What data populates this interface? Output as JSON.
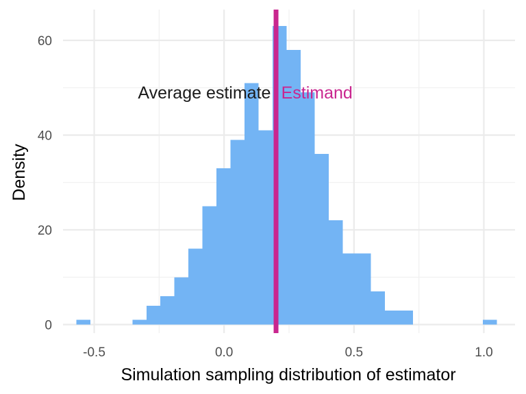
{
  "chart_data": {
    "type": "bar",
    "subtype": "histogram",
    "xlabel": "Simulation sampling distribution of estimator",
    "ylabel": "Density",
    "xlim": [
      -0.62,
      1.12
    ],
    "ylim": [
      -1.8,
      66.5
    ],
    "x_ticks": [
      -0.5,
      0.0,
      0.5,
      1.0
    ],
    "x_tick_labels": [
      "-0.5",
      "0.0",
      "0.5",
      "1.0"
    ],
    "y_ticks": [
      0,
      20,
      40,
      60
    ],
    "y_tick_labels": [
      "0",
      "20",
      "40",
      "60"
    ],
    "grid": true,
    "bar_color": "#73b4f4",
    "bins": [
      {
        "x0": -0.568,
        "x1": -0.514,
        "density": 1
      },
      {
        "x0": -0.353,
        "x1": -0.299,
        "density": 1
      },
      {
        "x0": -0.299,
        "x1": -0.245,
        "density": 4
      },
      {
        "x0": -0.245,
        "x1": -0.191,
        "density": 6
      },
      {
        "x0": -0.191,
        "x1": -0.137,
        "density": 10
      },
      {
        "x0": -0.137,
        "x1": -0.083,
        "density": 16
      },
      {
        "x0": -0.083,
        "x1": -0.029,
        "density": 25
      },
      {
        "x0": -0.029,
        "x1": 0.025,
        "density": 33
      },
      {
        "x0": 0.025,
        "x1": 0.079,
        "density": 39
      },
      {
        "x0": 0.079,
        "x1": 0.133,
        "density": 51
      },
      {
        "x0": 0.133,
        "x1": 0.187,
        "density": 41
      },
      {
        "x0": 0.187,
        "x1": 0.241,
        "density": 63
      },
      {
        "x0": 0.241,
        "x1": 0.295,
        "density": 58
      },
      {
        "x0": 0.295,
        "x1": 0.349,
        "density": 49
      },
      {
        "x0": 0.349,
        "x1": 0.403,
        "density": 36
      },
      {
        "x0": 0.403,
        "x1": 0.457,
        "density": 22
      },
      {
        "x0": 0.457,
        "x1": 0.511,
        "density": 15
      },
      {
        "x0": 0.511,
        "x1": 0.565,
        "density": 15
      },
      {
        "x0": 0.565,
        "x1": 0.619,
        "density": 7
      },
      {
        "x0": 0.619,
        "x1": 0.673,
        "density": 3
      },
      {
        "x0": 0.673,
        "x1": 0.727,
        "density": 3
      },
      {
        "x0": 0.996,
        "x1": 1.05,
        "density": 1
      }
    ],
    "vertical_lines": [
      {
        "x": 0.2,
        "color": "#c9268f",
        "note": "average estimate and estimand coincide"
      }
    ],
    "annotations": [
      {
        "text": "Average estimate",
        "x": 0.18,
        "y": 49,
        "align": "right",
        "color": "#1a1a1a"
      },
      {
        "text": "Estimand",
        "x": 0.22,
        "y": 49,
        "align": "left",
        "color": "#c9268f"
      }
    ]
  }
}
